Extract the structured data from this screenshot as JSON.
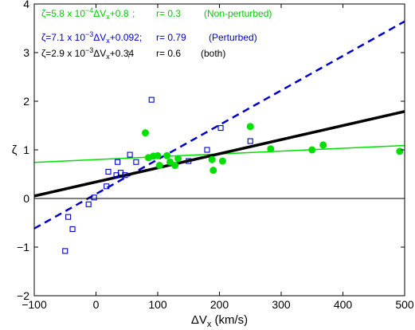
{
  "chart_data": {
    "type": "scatter",
    "xlabel_main": "ΔV",
    "xlabel_sub": "x",
    "xlabel_unit": " (km/s)",
    "ylabel": "ζ",
    "xlim": [
      -100,
      500
    ],
    "ylim": [
      -2,
      4
    ],
    "xticks": [
      -100,
      0,
      100,
      200,
      300,
      400,
      500
    ],
    "yticks": [
      -2,
      -1,
      0,
      1,
      2,
      3,
      4
    ],
    "grid": false,
    "legend_position": "top-left",
    "series": [
      {
        "key": "non_perturbed",
        "marker": "filled-circle",
        "color": "#00e000",
        "points": [
          [
            80,
            1.35
          ],
          [
            85,
            0.84
          ],
          [
            93,
            0.87
          ],
          [
            100,
            0.88
          ],
          [
            103,
            0.68
          ],
          [
            115,
            0.88
          ],
          [
            120,
            0.75
          ],
          [
            128,
            0.68
          ],
          [
            133,
            0.82
          ],
          [
            188,
            0.8
          ],
          [
            190,
            0.58
          ],
          [
            205,
            0.77
          ],
          [
            250,
            1.48
          ],
          [
            283,
            1.02
          ],
          [
            350,
            1.0
          ],
          [
            368,
            1.1
          ],
          [
            492,
            0.97
          ]
        ],
        "fit": {
          "slope": 0.00058,
          "intercept": 0.8,
          "style": "solid",
          "width": 1.5
        }
      },
      {
        "key": "perturbed",
        "marker": "open-square",
        "color": "#0000cc",
        "points": [
          [
            -50,
            -1.08
          ],
          [
            -45,
            -0.38
          ],
          [
            -38,
            -0.63
          ],
          [
            -12,
            -0.12
          ],
          [
            -3,
            0.02
          ],
          [
            17,
            0.25
          ],
          [
            20,
            0.55
          ],
          [
            33,
            0.48
          ],
          [
            35,
            0.75
          ],
          [
            40,
            0.53
          ],
          [
            47,
            0.48
          ],
          [
            55,
            0.9
          ],
          [
            65,
            0.75
          ],
          [
            90,
            2.03
          ],
          [
            150,
            0.77
          ],
          [
            180,
            1.0
          ],
          [
            202,
            1.45
          ],
          [
            250,
            1.18
          ]
        ],
        "fit": {
          "slope": 0.0071,
          "intercept": 0.092,
          "style": "dashed",
          "width": 2.5
        }
      },
      {
        "key": "both",
        "color": "#000000",
        "fit": {
          "slope": 0.0029,
          "intercept": 0.34,
          "style": "solid",
          "width": 3.5
        }
      }
    ],
    "legend": [
      {
        "color": "#00cc00",
        "pre": "ζ=5.8 x 10",
        "exp": "−4",
        "mid": "ΔV",
        "sub": "x",
        "post": "+0.8",
        "sep": ";",
        "r": "r= 0.3",
        "label": "(Non-perturbed)"
      },
      {
        "color": "#0000cc",
        "pre": "ζ=7.1 x 10",
        "exp": "−3",
        "mid": "ΔV",
        "sub": "x",
        "post": "+0.092;",
        "sep": "",
        "r": "r= 0.79",
        "label": "(Perturbed)"
      },
      {
        "color": "#000000",
        "pre": "ζ=2.9 x 10",
        "exp": "−3",
        "mid": "ΔV",
        "sub": "x",
        "post": "+0.34",
        "sep": ";",
        "r": "r= 0.6",
        "label": "(both)"
      }
    ]
  }
}
